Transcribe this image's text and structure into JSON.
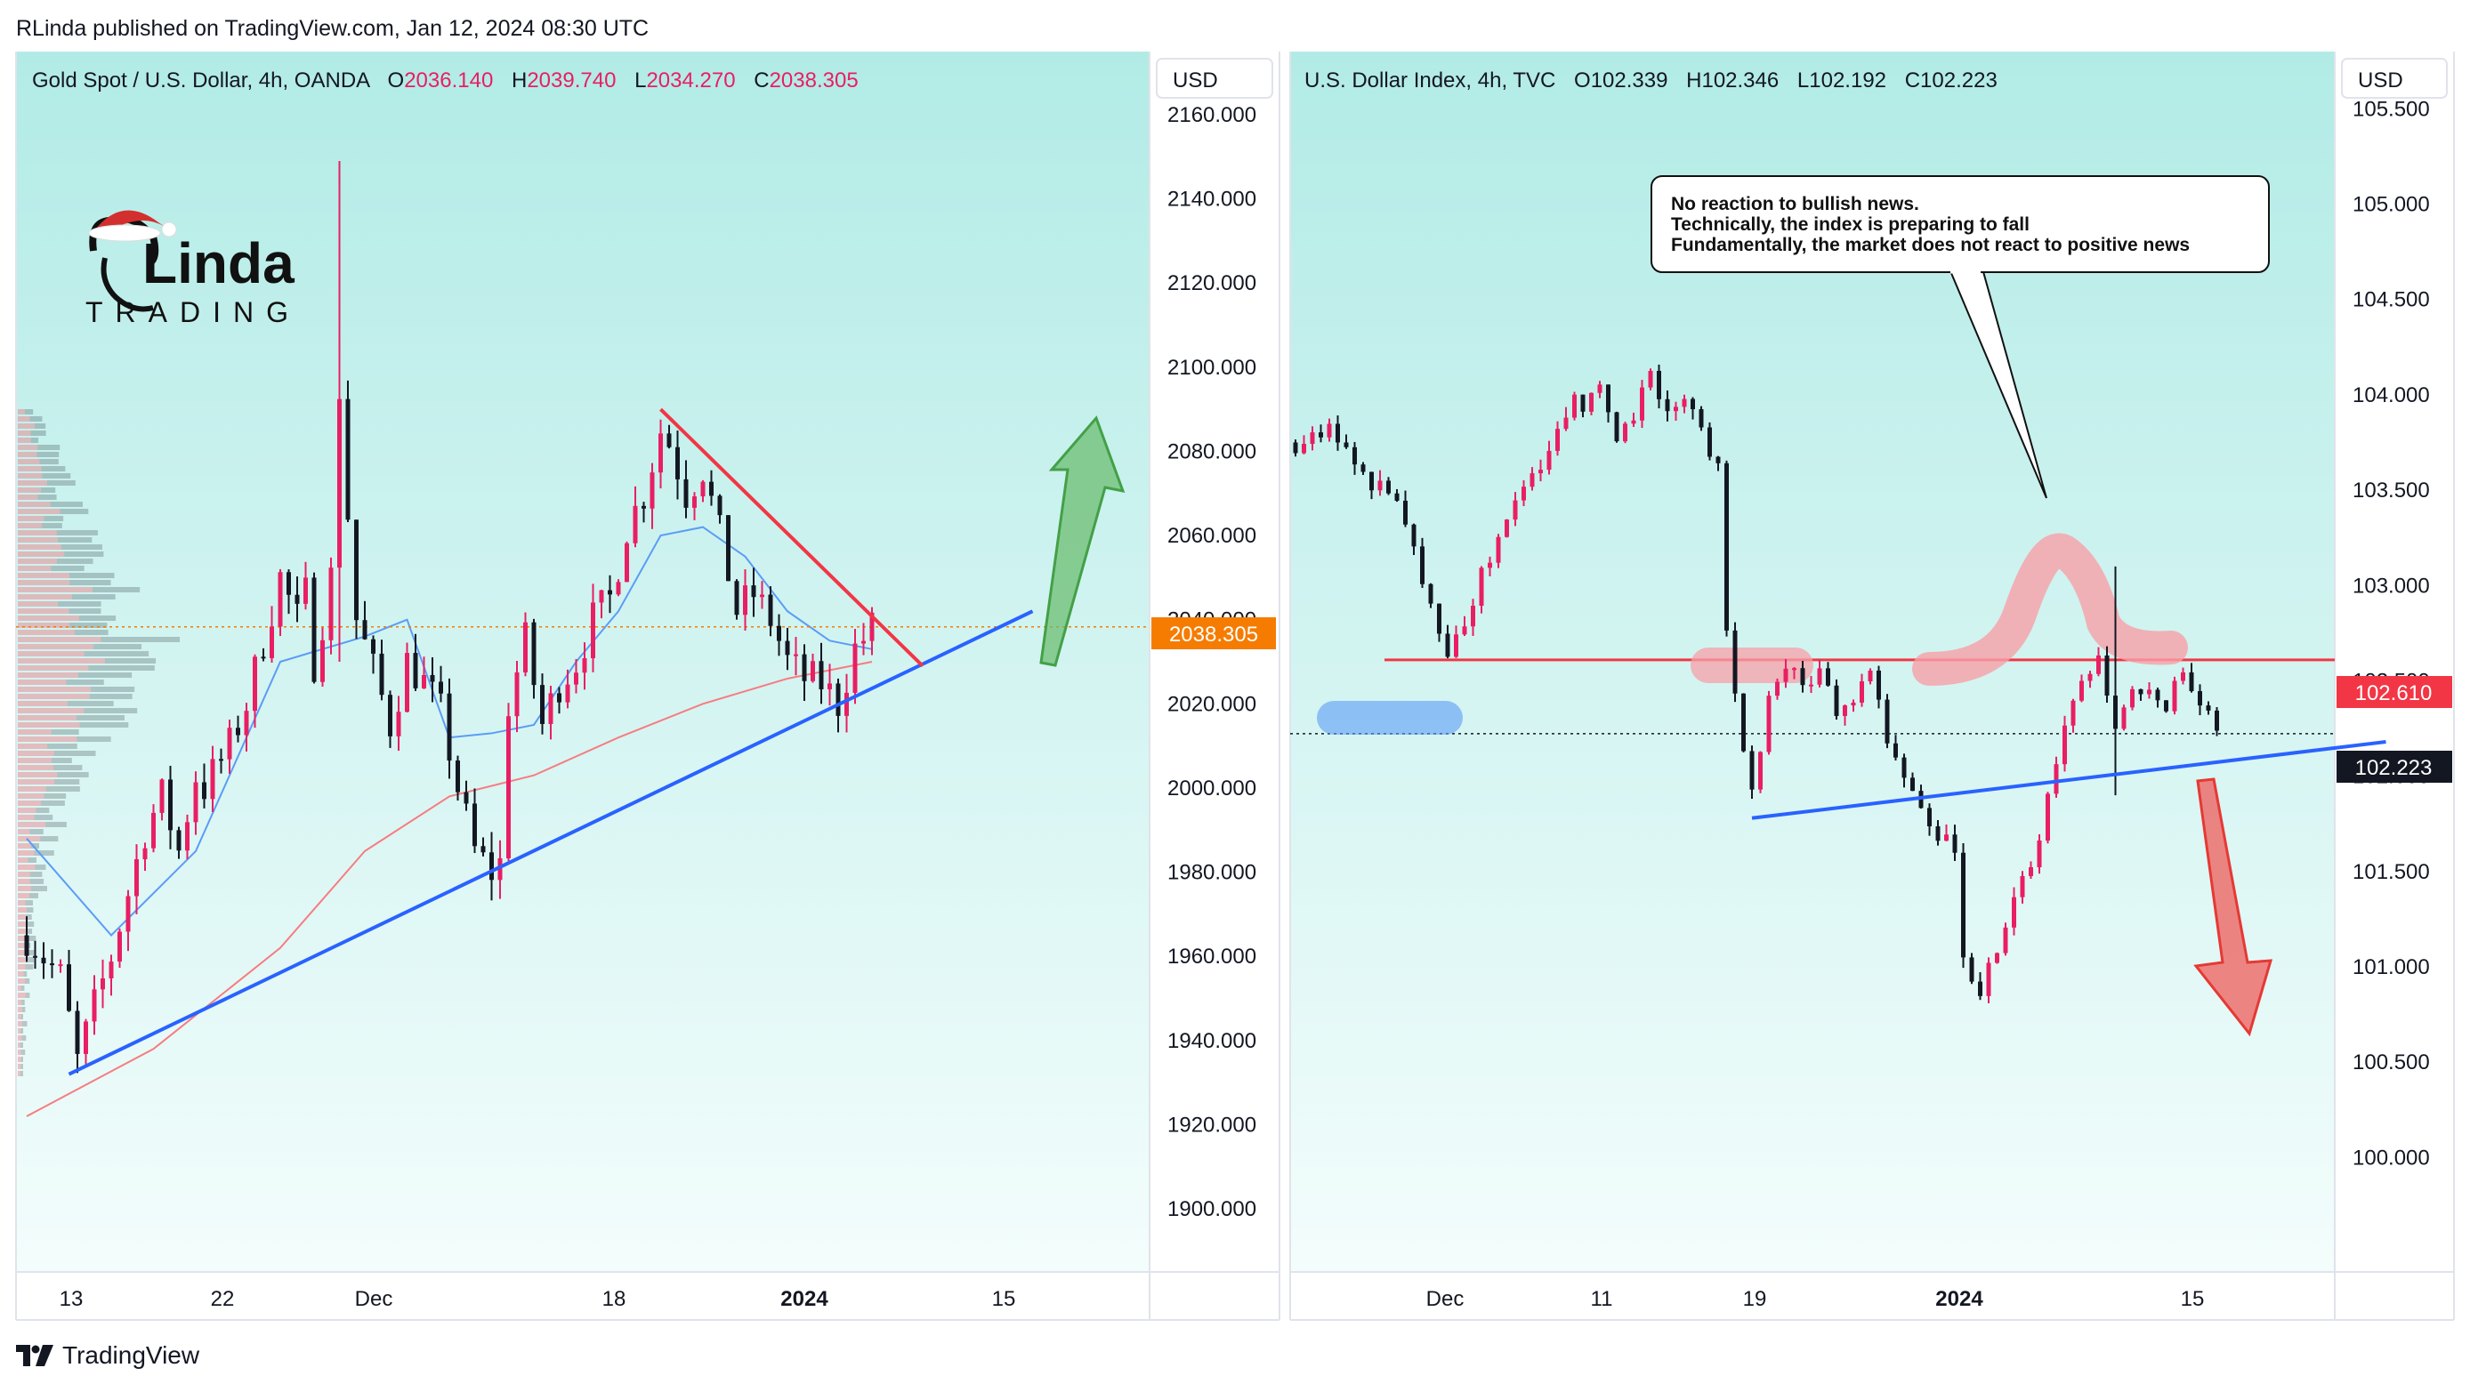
{
  "header": {
    "published": "RLinda published on TradingView.com, Jan 12, 2024 08:30 UTC"
  },
  "footer": {
    "brand": "TradingView",
    "logo_icon": "tradingview-logo-icon"
  },
  "colors": {
    "up": "#e91e63",
    "down": "#131722",
    "trend_blue": "#2962ff",
    "resistance_red": "#f23645",
    "arrow_green": "#66bb6a",
    "arrow_red": "#ef5350",
    "bg_top": "#b2ebe6",
    "bg_bottom": "#f3fdfc"
  },
  "logo": {
    "name": "RLinda Trading",
    "icon": "santa-hat-woman-logo-icon"
  },
  "chart_data": [
    {
      "type": "candlestick",
      "title": "Gold Spot / U.S. Dollar, 4h, OANDA",
      "ohlc": {
        "O_label": "O",
        "O": "2036.140",
        "H_label": "H",
        "H": "2039.740",
        "L_label": "L",
        "L": "2034.270",
        "C_label": "C",
        "C": "2038.305"
      },
      "currency": "USD",
      "ylim": [
        1885,
        2175
      ],
      "y_ticks": [
        "2160.000",
        "2140.000",
        "2120.000",
        "2100.000",
        "2080.000",
        "2060.000",
        "2040.000",
        "2020.000",
        "2000.000",
        "1980.000",
        "1960.000",
        "1940.000",
        "1920.000",
        "1900.000"
      ],
      "x_ticks": [
        "13",
        "22",
        "Dec",
        "18",
        "2024",
        "15"
      ],
      "x_tick_bold": "2024",
      "last_price": "2038.305",
      "price_path": [
        [
          0,
          1965
        ],
        [
          4,
          1955
        ],
        [
          6,
          1935
        ],
        [
          8,
          1948
        ],
        [
          10,
          1960
        ],
        [
          12,
          1975
        ],
        [
          14,
          1990
        ],
        [
          16,
          1998
        ],
        [
          18,
          1985
        ],
        [
          20,
          2003
        ],
        [
          21,
          2000
        ],
        [
          24,
          2010
        ],
        [
          26,
          2020
        ],
        [
          28,
          2035
        ],
        [
          30,
          2050
        ],
        [
          32,
          2040
        ],
        [
          33,
          2046
        ],
        [
          34,
          2030
        ],
        [
          36,
          2050
        ],
        [
          37,
          2095
        ],
        [
          38,
          2065
        ],
        [
          39,
          2040
        ],
        [
          41,
          2028
        ],
        [
          43,
          2015
        ],
        [
          45,
          2030
        ],
        [
          47,
          2025
        ],
        [
          49,
          2018
        ],
        [
          51,
          2000
        ],
        [
          53,
          1985
        ],
        [
          55,
          1980
        ],
        [
          56,
          1982
        ],
        [
          57,
          2020
        ],
        [
          59,
          2035
        ],
        [
          61,
          2015
        ],
        [
          63,
          2025
        ],
        [
          65,
          2030
        ],
        [
          67,
          2040
        ],
        [
          69,
          2045
        ],
        [
          71,
          2062
        ],
        [
          73,
          2070
        ],
        [
          75,
          2085
        ],
        [
          76,
          2082
        ],
        [
          78,
          2070
        ],
        [
          80,
          2076
        ],
        [
          82,
          2060
        ],
        [
          84,
          2042
        ],
        [
          86,
          2046
        ],
        [
          88,
          2040
        ],
        [
          90,
          2030
        ],
        [
          92,
          2026
        ],
        [
          94,
          2025
        ],
        [
          96,
          2020
        ],
        [
          98,
          2033
        ],
        [
          100,
          2038
        ]
      ],
      "wick_spike": {
        "index": 37,
        "high": 2149,
        "low": 2030
      },
      "ma_fast": [
        [
          0,
          1988
        ],
        [
          10,
          1965
        ],
        [
          20,
          1985
        ],
        [
          30,
          2030
        ],
        [
          40,
          2036
        ],
        [
          45,
          2040
        ],
        [
          50,
          2012
        ],
        [
          55,
          2013
        ],
        [
          60,
          2015
        ],
        [
          65,
          2030
        ],
        [
          70,
          2042
        ],
        [
          75,
          2060
        ],
        [
          80,
          2062
        ],
        [
          85,
          2055
        ],
        [
          90,
          2042
        ],
        [
          95,
          2035
        ],
        [
          100,
          2033
        ]
      ],
      "ma_slow": [
        [
          0,
          1922
        ],
        [
          15,
          1938
        ],
        [
          30,
          1962
        ],
        [
          40,
          1985
        ],
        [
          50,
          1998
        ],
        [
          60,
          2003
        ],
        [
          70,
          2012
        ],
        [
          80,
          2020
        ],
        [
          90,
          2026
        ],
        [
          100,
          2030
        ]
      ],
      "support_line": {
        "from": [
          5,
          1932
        ],
        "to": [
          119,
          2042
        ]
      },
      "resistance_line": {
        "from": [
          75,
          2090
        ],
        "to": [
          106,
          2029
        ]
      },
      "forecast": "bullish"
    },
    {
      "type": "candlestick",
      "title": "U.S. Dollar Index, 4h, TVC",
      "ohlc": {
        "O_label": "O",
        "O": "102.339",
        "H_label": "H",
        "H": "102.346",
        "L_label": "L",
        "L": "102.192",
        "C_label": "C",
        "C": "102.223"
      },
      "currency": "USD",
      "ylim": [
        99.4,
        105.8
      ],
      "y_ticks": [
        "105.500",
        "105.000",
        "104.500",
        "104.000",
        "103.500",
        "103.000",
        "102.500",
        "102.000",
        "101.500",
        "101.000",
        "100.500",
        "100.000"
      ],
      "x_ticks": [
        "Dec",
        "11",
        "19",
        "2024",
        "15"
      ],
      "x_tick_bold": "2024",
      "level_line": "102.610",
      "last_price": "102.223",
      "price_path": [
        [
          0,
          103.75
        ],
        [
          4,
          103.8
        ],
        [
          8,
          103.6
        ],
        [
          12,
          103.4
        ],
        [
          16,
          102.9
        ],
        [
          18,
          102.65
        ],
        [
          20,
          102.8
        ],
        [
          22,
          103.05
        ],
        [
          24,
          103.2
        ],
        [
          27,
          103.5
        ],
        [
          30,
          103.7
        ],
        [
          33,
          103.95
        ],
        [
          36,
          104.0
        ],
        [
          38,
          103.8
        ],
        [
          40,
          103.9
        ],
        [
          42,
          104.1
        ],
        [
          44,
          103.95
        ],
        [
          46,
          104.0
        ],
        [
          48,
          103.85
        ],
        [
          50,
          103.6
        ],
        [
          51,
          102.8
        ],
        [
          52,
          102.4
        ],
        [
          54,
          101.95
        ],
        [
          56,
          102.4
        ],
        [
          58,
          102.6
        ],
        [
          60,
          102.5
        ],
        [
          62,
          102.55
        ],
        [
          64,
          102.3
        ],
        [
          66,
          102.4
        ],
        [
          68,
          102.5
        ],
        [
          70,
          102.2
        ],
        [
          72,
          101.95
        ],
        [
          74,
          101.8
        ],
        [
          76,
          101.7
        ],
        [
          78,
          101.6
        ],
        [
          79,
          101.1
        ],
        [
          81,
          100.85
        ],
        [
          83,
          101.1
        ],
        [
          85,
          101.4
        ],
        [
          87,
          101.5
        ],
        [
          89,
          101.9
        ],
        [
          91,
          102.3
        ],
        [
          93,
          102.5
        ],
        [
          95,
          102.6
        ],
        [
          97,
          102.2
        ],
        [
          99,
          102.5
        ],
        [
          101,
          102.4
        ],
        [
          103,
          102.3
        ],
        [
          105,
          102.6
        ],
        [
          107,
          102.4
        ],
        [
          109,
          102.25
        ]
      ],
      "wick_spike": {
        "index": 97,
        "high": 103.1,
        "low": 101.9
      },
      "resistance_level": 102.61,
      "support_line": {
        "from": [
          54,
          101.78
        ],
        "to": [
          129,
          102.18
        ]
      },
      "forecast": "bearish",
      "callout": {
        "lines": [
          "No reaction to bullish news.",
          "Technically, the index is preparing to fall",
          "Fundamentally, the market does not react to positive news"
        ]
      }
    }
  ]
}
